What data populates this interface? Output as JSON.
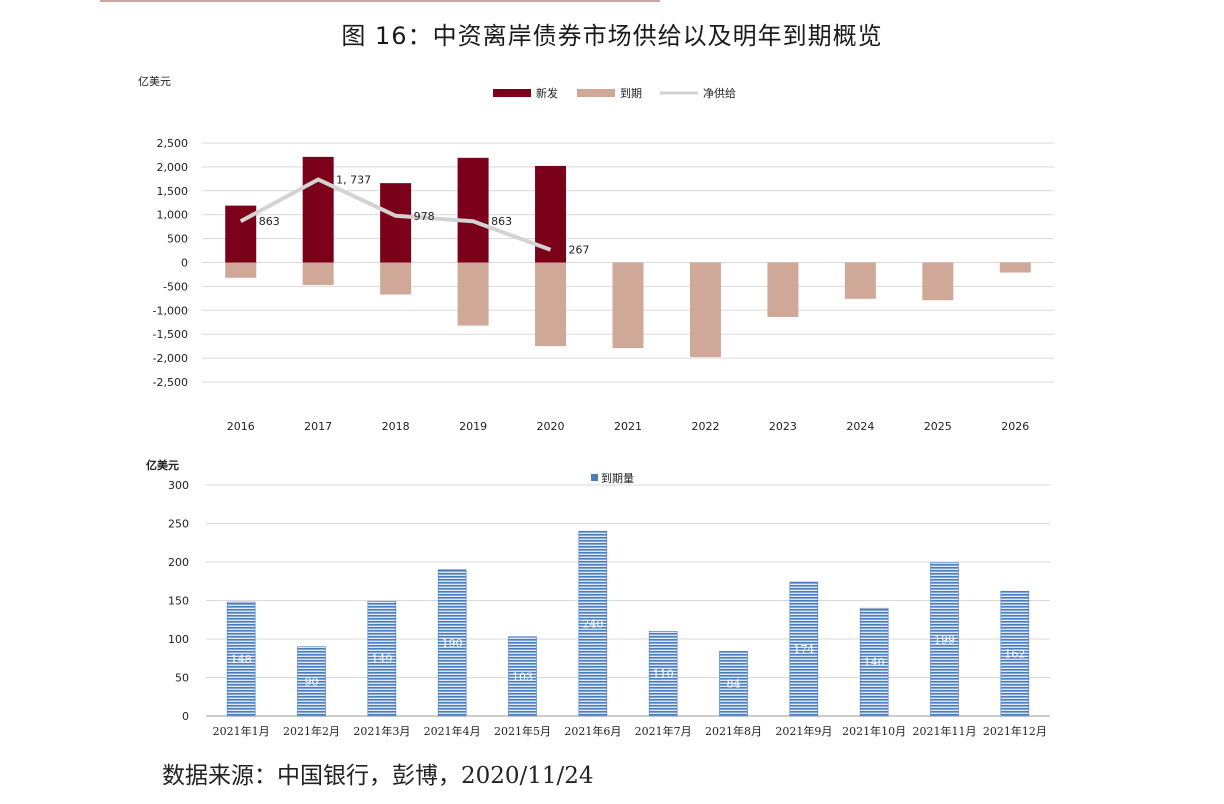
{
  "page": {
    "title": "图 16：中资离岸债券市场供给以及明年到期概览",
    "source": "数据来源：中国银行，彭博，2020/11/24"
  },
  "chart_data": [
    {
      "type": "bar",
      "ylabel": "亿美元",
      "categories": [
        "2016",
        "2017",
        "2018",
        "2019",
        "2020",
        "2021",
        "2022",
        "2023",
        "2024",
        "2025",
        "2026"
      ],
      "ylim": [
        -2500,
        2500
      ],
      "yticks": [
        2500,
        2000,
        1500,
        1000,
        500,
        0,
        -500,
        -1000,
        -1500,
        -2000,
        -2500
      ],
      "ytick_labels": [
        "2,500",
        "2,000",
        "1,500",
        "1,000",
        "500",
        "0",
        "-500",
        "-1,000",
        "-1,500",
        "-2,000",
        "-2,500"
      ],
      "legend_position": "top-center",
      "grid": true,
      "series": [
        {
          "name": "新发",
          "kind": "bar",
          "color": "#7b0019",
          "values": [
            1190,
            2210,
            1660,
            2190,
            2020,
            null,
            null,
            null,
            null,
            null,
            null
          ]
        },
        {
          "name": "到期",
          "kind": "bar",
          "color": "#d0a898",
          "values": [
            -320,
            -470,
            -670,
            -1320,
            -1750,
            -1790,
            -1980,
            -1140,
            -760,
            -790,
            -210
          ]
        },
        {
          "name": "净供给",
          "kind": "line",
          "color": "#d3d3d3",
          "values": [
            863,
            1737,
            978,
            863,
            267,
            null,
            null,
            null,
            null,
            null,
            null
          ],
          "labels": [
            "863",
            "1, 737",
            "978",
            "863",
            "267"
          ]
        }
      ]
    },
    {
      "type": "bar",
      "ylabel": "亿美元",
      "categories": [
        "2021年1月",
        "2021年2月",
        "2021年3月",
        "2021年4月",
        "2021年5月",
        "2021年6月",
        "2021年7月",
        "2021年8月",
        "2021年9月",
        "2021年10月",
        "2021年11月",
        "2021年12月"
      ],
      "ylim": [
        0,
        300
      ],
      "yticks": [
        300,
        250,
        200,
        150,
        100,
        50,
        0
      ],
      "legend_position": "top-center",
      "grid": true,
      "series": [
        {
          "name": "到期量",
          "color": "#4a7cc0",
          "values": [
            148,
            90,
            149,
            190,
            103,
            240,
            110,
            84,
            174,
            140,
            199,
            162
          ]
        }
      ]
    }
  ]
}
